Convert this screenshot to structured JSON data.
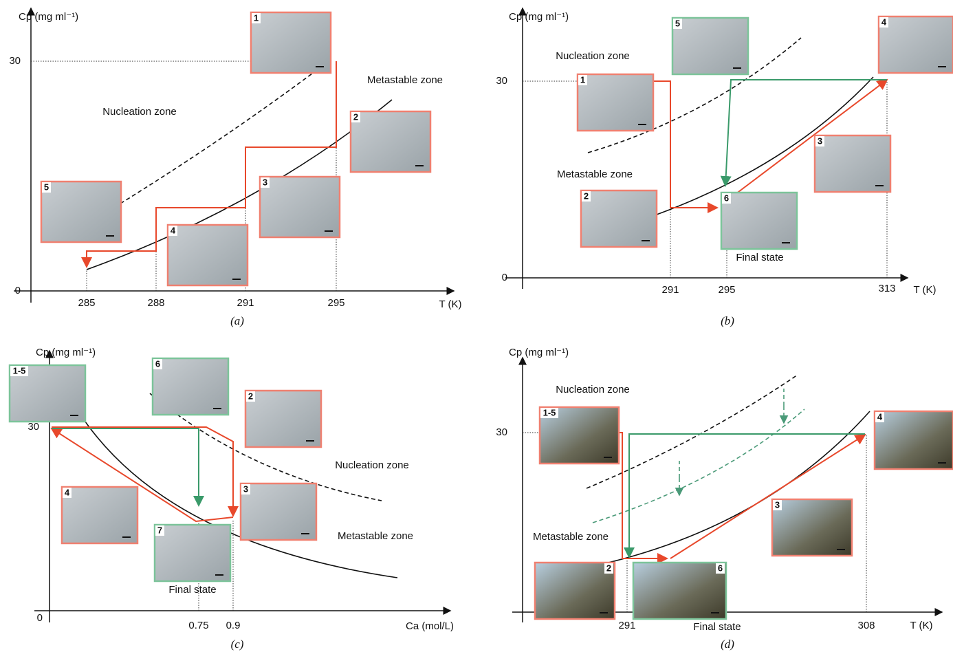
{
  "panels": [
    {
      "caption": "(a)",
      "y_axis_label": "Cp (mg ml⁻¹)",
      "x_axis_label": "T (K)",
      "y_ticks": [
        0,
        30
      ],
      "x_ticks": [
        285,
        288,
        291,
        295
      ],
      "zones": [
        "Nucleation zone",
        "Metastable zone"
      ],
      "photos": [
        "1",
        "2",
        "3",
        "4",
        "5"
      ]
    },
    {
      "caption": "(b)",
      "y_axis_label": "Cp (mg ml⁻¹)",
      "x_axis_label": "T (K)",
      "y_ticks": [
        0,
        30
      ],
      "x_ticks": [
        291,
        295,
        313
      ],
      "zones": [
        "Nucleation zone",
        "Metastable zone"
      ],
      "photos": [
        "1",
        "5",
        "4",
        "3",
        "2",
        "6"
      ],
      "final_state": "Final state"
    },
    {
      "caption": "(c)",
      "y_axis_label": "Cp (mg ml⁻¹)",
      "x_axis_label": "Ca (mol/L)",
      "y_ticks": [
        0,
        30
      ],
      "x_ticks": [
        0.75,
        0.9
      ],
      "zones": [
        "Nucleation zone",
        "Metastable zone"
      ],
      "photos": [
        "1-5",
        "6",
        "2",
        "4",
        "3",
        "7"
      ],
      "final_state": "Final state"
    },
    {
      "caption": "(d)",
      "y_axis_label": "Cp (mg ml⁻¹)",
      "x_axis_label": "T (K)",
      "y_ticks": [
        30
      ],
      "x_ticks": [
        291,
        308
      ],
      "zones": [
        "Nucleation zone",
        "Metastable zone"
      ],
      "photos": [
        "1-5",
        "4",
        "3",
        "2",
        "6"
      ],
      "final_state": "Final state"
    }
  ]
}
